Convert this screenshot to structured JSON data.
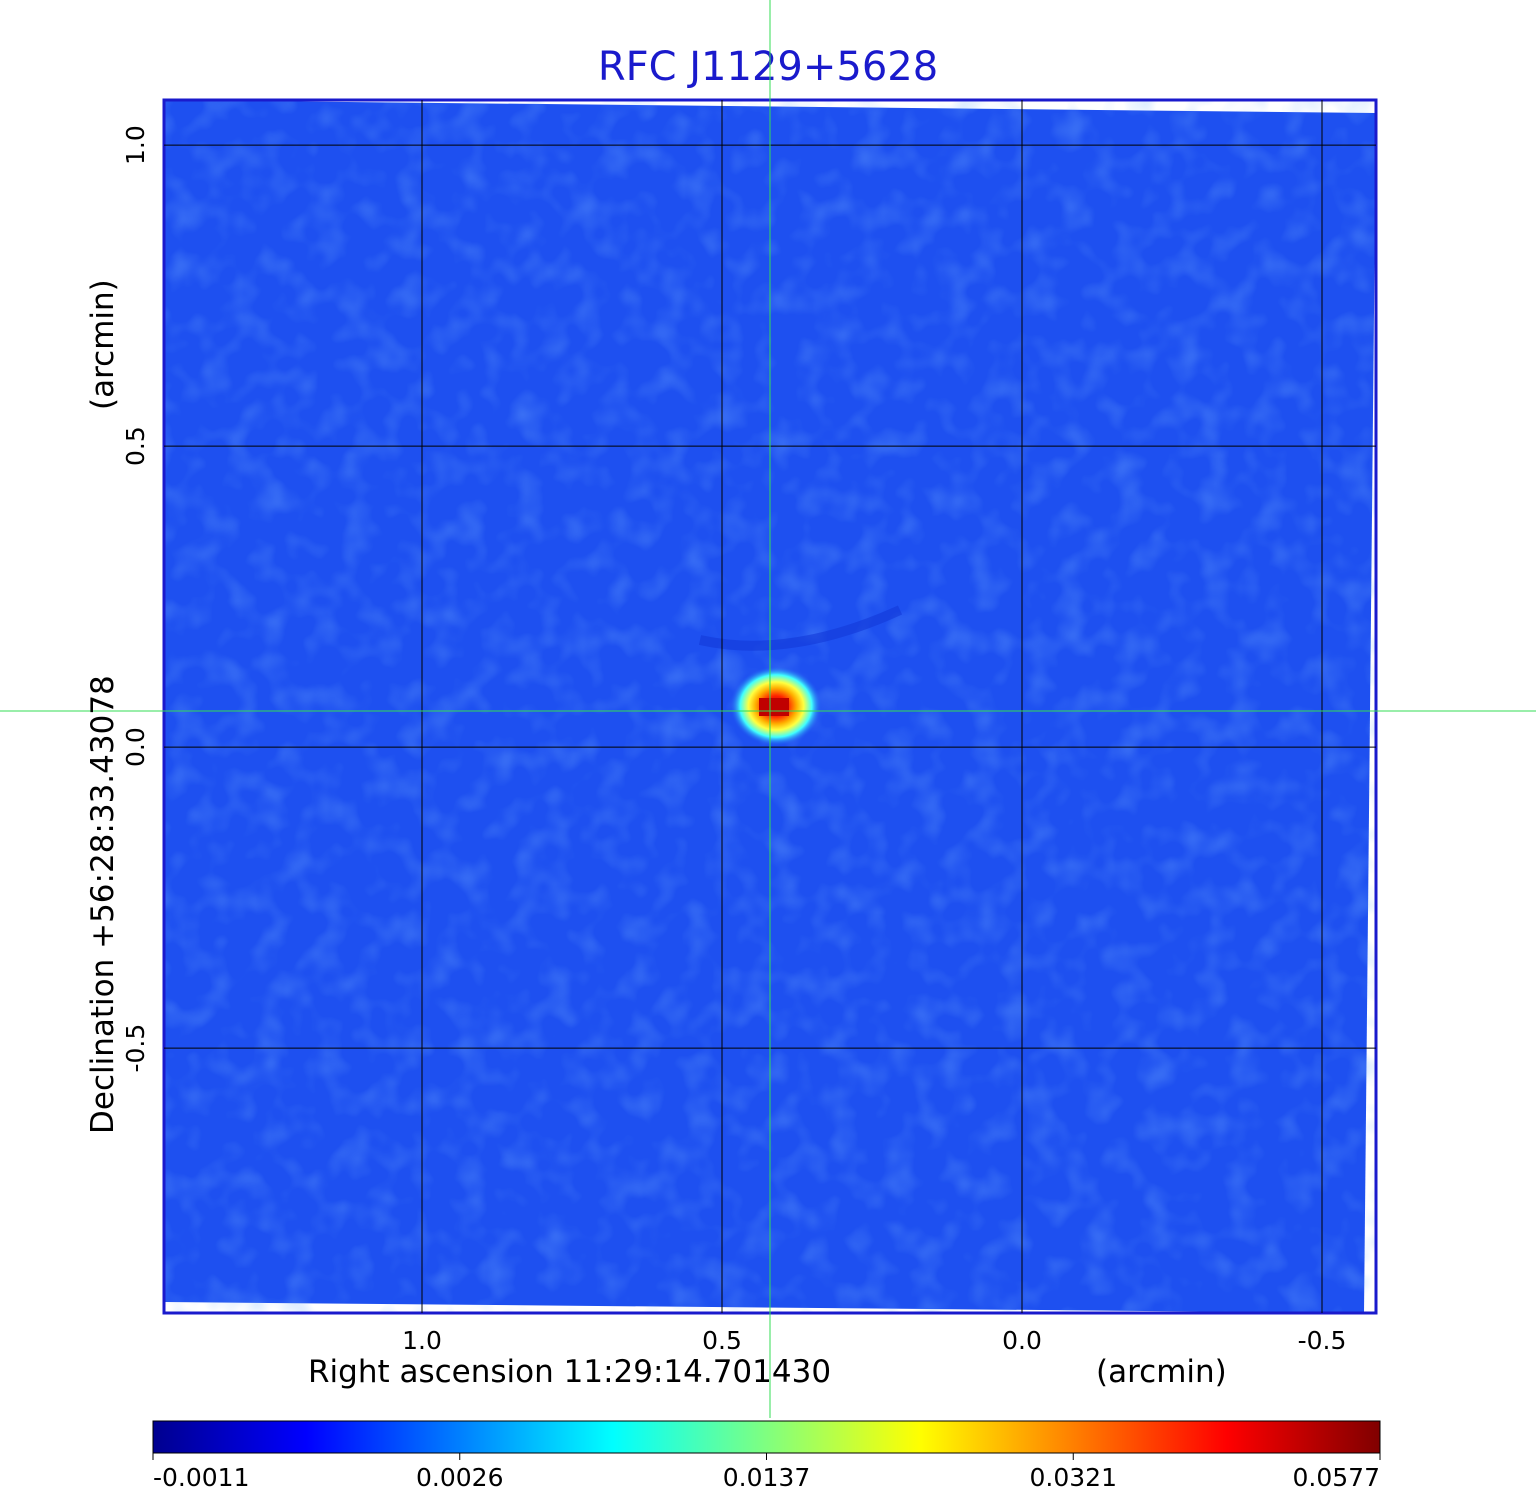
{
  "chart_data": {
    "type": "heatmap",
    "title": "RFC J1129+5628",
    "xlabel": "Right ascension  11:29:14.701430",
    "xunit": "(arcmin)",
    "ylabel": "Declination  +56:28:33.43078",
    "yunit": "(arcmin)",
    "x_ticks": [
      "1.0",
      "0.5",
      "0.0",
      "-0.5"
    ],
    "y_ticks": [
      "1.0",
      "0.5",
      "0.0",
      "-0.5"
    ],
    "x_tick_values": [
      1.0,
      0.5,
      0.0,
      -0.5
    ],
    "y_tick_values": [
      1.0,
      0.5,
      0.0,
      -0.5
    ],
    "xlim": [
      1.43,
      -0.59
    ],
    "ylim": [
      -0.94,
      1.075
    ],
    "grid": true,
    "crosshair": {
      "x": 0.42,
      "y": 0.06,
      "color": "#33dd55"
    },
    "source_peak": {
      "x": 0.42,
      "y": 0.06,
      "value": 0.0577
    },
    "background_level": 0.0,
    "colorbar": {
      "colormap": "jet",
      "ticks": [
        "-0.0011",
        "0.0026",
        "0.0137",
        "0.0321",
        "0.0577"
      ]
    },
    "colors": {
      "title": "#1a1acc",
      "frame": "#1a1acc",
      "grid": "#000000",
      "crosshair": "#33dd55",
      "background_field": "#1e50f0"
    }
  }
}
